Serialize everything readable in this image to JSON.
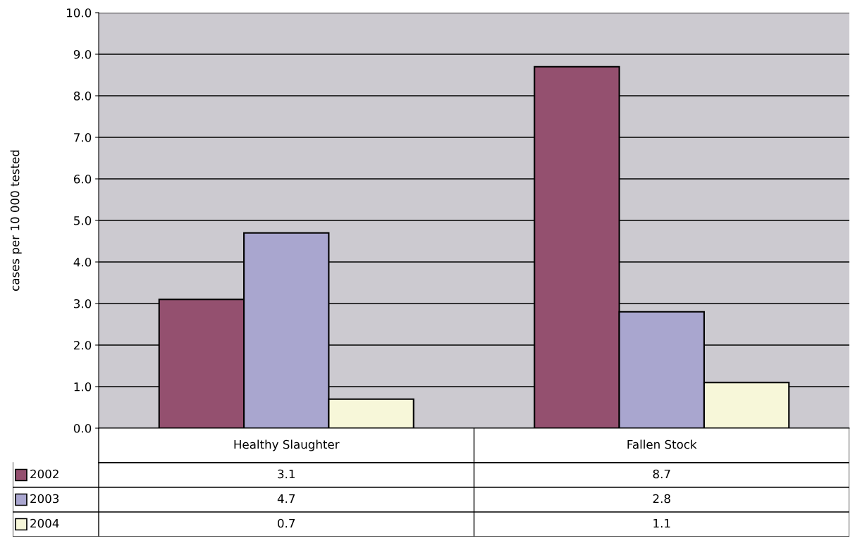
{
  "chart_data": {
    "type": "bar",
    "ylabel": "cases per 10 000 tested",
    "categories": [
      "Healthy Slaughter",
      "Fallen Stock"
    ],
    "series": [
      {
        "name": "2002",
        "color": "#94506f",
        "values": [
          3.1,
          8.7
        ]
      },
      {
        "name": "2003",
        "color": "#a9a6cf",
        "values": [
          4.7,
          2.8
        ]
      },
      {
        "name": "2004",
        "color": "#f7f7d9",
        "values": [
          0.7,
          1.1
        ]
      }
    ],
    "ylim": [
      0,
      10
    ],
    "yticks": [
      {
        "value": 0,
        "label": "0.0"
      },
      {
        "value": 1,
        "label": "1.0"
      },
      {
        "value": 2,
        "label": "2.0"
      },
      {
        "value": 3,
        "label": "3.0"
      },
      {
        "value": 4,
        "label": "4.0"
      },
      {
        "value": 5,
        "label": "5.0"
      },
      {
        "value": 6,
        "label": "6.0"
      },
      {
        "value": 7,
        "label": "7.0"
      },
      {
        "value": 8,
        "label": "8.0"
      },
      {
        "value": 9,
        "label": "9.0"
      },
      {
        "value": 10,
        "label": "10.0"
      }
    ],
    "grid": "y",
    "tick_labels": "y",
    "data_labels": true,
    "legend": "bottom"
  }
}
